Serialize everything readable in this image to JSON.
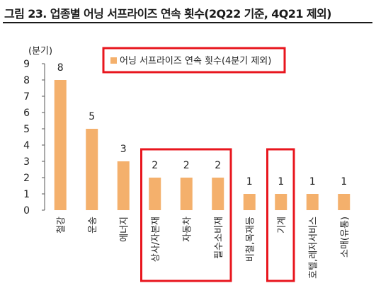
{
  "title": "그림 23. 업종별 어닝 서프라이즈 연속 횟수(2Q22 기준, 4Q21 제외)",
  "chart_data": {
    "type": "bar",
    "unit_label": "(분기)",
    "categories": [
      "철강",
      "운송",
      "에너지",
      "상사/자본재",
      "자동차",
      "필수소비재",
      "비철,목재등",
      "기계",
      "호텔,레저서비스",
      "소매(유통)"
    ],
    "values": [
      8,
      5,
      3,
      2,
      2,
      2,
      1,
      1,
      1,
      1
    ],
    "series": [
      {
        "name": "어닝 서프라이즈 연속 횟수(4분기 제외)",
        "values": [
          8,
          5,
          3,
          2,
          2,
          2,
          1,
          1,
          1,
          1
        ]
      }
    ],
    "ylim": [
      0,
      9
    ],
    "yticks": [
      "0",
      "1",
      "2",
      "3",
      "4",
      "5",
      "6",
      "7",
      "8",
      "9"
    ],
    "bar_color": "#f4b06c",
    "highlight_color": "#e8161e",
    "highlighted_groups": [
      [
        "상사/자본재",
        "자동차",
        "필수소비재"
      ],
      [
        "기계"
      ]
    ],
    "legend_position": "top-center",
    "grid": false
  }
}
